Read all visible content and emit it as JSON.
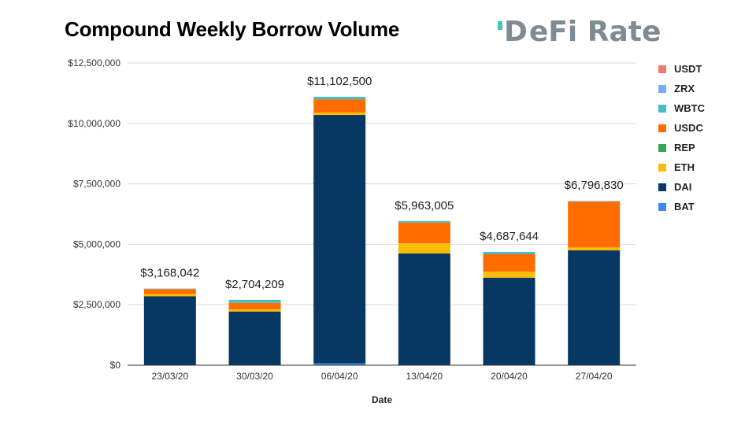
{
  "chart_data": {
    "type": "bar",
    "stacked": true,
    "title": "Compound Weekly Borrow Volume",
    "xlabel": "Date",
    "ylabel": "",
    "ylim": [
      0,
      12500000
    ],
    "yticks": [
      0,
      2500000,
      5000000,
      7500000,
      10000000,
      12500000
    ],
    "ytick_labels": [
      "$0",
      "$2,500,000",
      "$5,000,000",
      "$7,500,000",
      "$10,000,000",
      "$12,500,000"
    ],
    "categories": [
      "23/03/20",
      "30/03/20",
      "06/04/20",
      "13/04/20",
      "20/04/20",
      "27/04/20"
    ],
    "totals": [
      3168042,
      2704209,
      11102500,
      5963005,
      4687644,
      6796830
    ],
    "total_labels": [
      "$3,168,042",
      "$2,704,209",
      "$11,102,500",
      "$5,963,005",
      "$4,687,644",
      "$6,796,830"
    ],
    "series": [
      {
        "name": "BAT",
        "color": "#4285f4",
        "values": [
          0,
          0,
          80000,
          0,
          0,
          0
        ]
      },
      {
        "name": "DAI",
        "color": "#073763",
        "values": [
          2850000,
          2220000,
          10270000,
          4620000,
          3620000,
          4750000
        ]
      },
      {
        "name": "ETH",
        "color": "#fbbc04",
        "values": [
          90000,
          90000,
          100000,
          420000,
          250000,
          120000
        ]
      },
      {
        "name": "REP",
        "color": "#34a853",
        "values": [
          0,
          0,
          0,
          0,
          0,
          0
        ]
      },
      {
        "name": "USDC",
        "color": "#ff6d01",
        "values": [
          210000,
          270000,
          550000,
          860000,
          720000,
          1880000
        ]
      },
      {
        "name": "WBTC",
        "color": "#46bdc6",
        "values": [
          18042,
          124209,
          102500,
          63005,
          97644,
          26830
        ]
      },
      {
        "name": "ZRX",
        "color": "#7baaf7",
        "values": [
          0,
          0,
          0,
          0,
          0,
          0
        ]
      },
      {
        "name": "USDT",
        "color": "#f07b72",
        "values": [
          0,
          0,
          0,
          0,
          0,
          20000
        ]
      }
    ],
    "legend_order": [
      "USDT",
      "ZRX",
      "WBTC",
      "USDC",
      "REP",
      "ETH",
      "DAI",
      "BAT"
    ],
    "legend_position": "right",
    "grid": true
  },
  "logo": {
    "mark": "D",
    "rest": "eFi Rate"
  }
}
